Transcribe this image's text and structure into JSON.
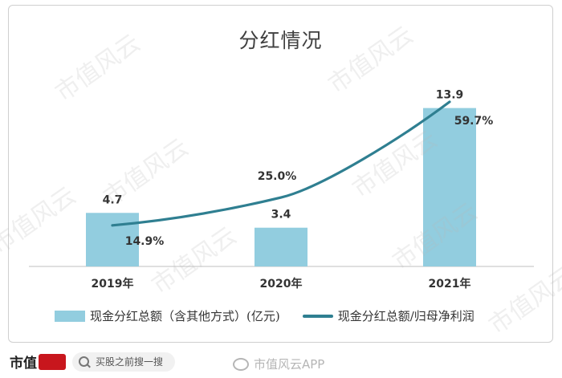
{
  "chart_data": {
    "type": "bar",
    "title": "分红情况",
    "categories": [
      "2019年",
      "2020年",
      "2021年"
    ],
    "series": [
      {
        "name": "现金分红总额（含其他方式）(亿元)",
        "type": "bar",
        "values": [
          4.7,
          3.4,
          13.9
        ],
        "labels": [
          "4.7",
          "3.4",
          "13.9"
        ],
        "color": "#92cddf"
      },
      {
        "name": "现金分红总额/归母净利润",
        "type": "line",
        "values": [
          14.9,
          25.0,
          59.7
        ],
        "labels": [
          "14.9%",
          "25.0%",
          "59.7%"
        ],
        "color": "#2f7f91",
        "unit": "%"
      }
    ],
    "ylim_bar": [
      0,
      15
    ],
    "ylim_line": [
      0,
      62
    ],
    "grid": false,
    "legend_position": "bottom"
  },
  "watermark": "市值风云",
  "footer": {
    "brand": "市值",
    "search_placeholder": "买股之前搜一搜",
    "weibo_text": "市值风云APP"
  }
}
